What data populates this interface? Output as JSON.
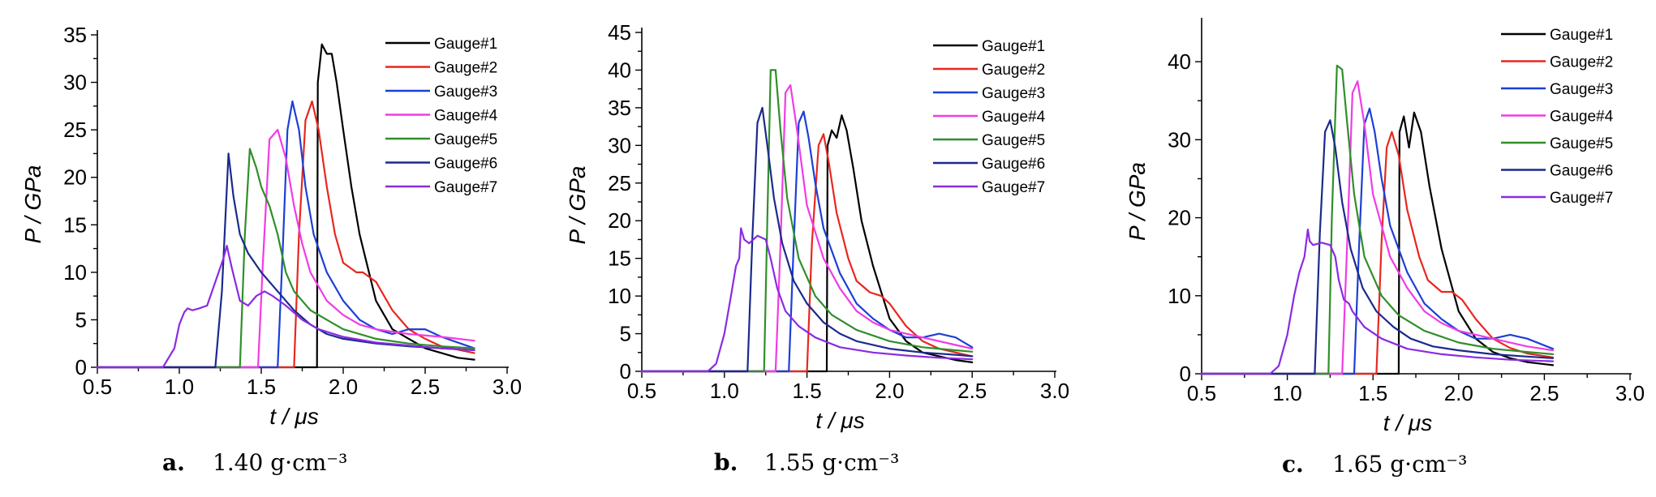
{
  "colors": {
    "Gauge#1": "#000000",
    "Gauge#2": "#e8271f",
    "Gauge#3": "#1c3fd6",
    "Gauge#4": "#f03ce6",
    "Gauge#5": "#2f8f2a",
    "Gauge#6": "#1b2a8c",
    "Gauge#7": "#8a2be2"
  },
  "chart_data": [
    {
      "type": "line",
      "panel": "a.",
      "caption": "1.40 g·cm⁻³",
      "xlabel": "t / μs",
      "ylabel": "P / GPa",
      "xlim": [
        0.5,
        3.0
      ],
      "ylim": [
        0,
        35
      ],
      "xticks": [
        "0.5",
        "1.0",
        "1.5",
        "2.0",
        "2.5",
        "3.0"
      ],
      "yticks": [
        "0",
        "5",
        "10",
        "15",
        "20",
        "25",
        "30",
        "35"
      ],
      "legend_position": "top-right",
      "series": [
        {
          "name": "Gauge#1",
          "x": [
            0.5,
            1.84,
            1.845,
            1.87,
            1.9,
            1.93,
            1.96,
            2.0,
            2.05,
            2.1,
            2.2,
            2.3,
            2.4,
            2.5,
            2.6,
            2.7,
            2.8
          ],
          "y": [
            0,
            0,
            30,
            34,
            33,
            33,
            30,
            25,
            19,
            14,
            7,
            4,
            3,
            2,
            1.5,
            1.0,
            0.8
          ]
        },
        {
          "name": "Gauge#2",
          "x": [
            0.5,
            1.7,
            1.73,
            1.77,
            1.81,
            1.85,
            1.9,
            1.95,
            2.0,
            2.08,
            2.12,
            2.2,
            2.3,
            2.4,
            2.5,
            2.6,
            2.8
          ],
          "y": [
            0,
            0,
            14,
            26,
            28,
            25,
            19,
            14,
            11,
            10,
            10,
            9,
            6,
            4,
            3,
            2.2,
            1.5
          ]
        },
        {
          "name": "Gauge#3",
          "x": [
            0.5,
            1.6,
            1.63,
            1.66,
            1.69,
            1.73,
            1.77,
            1.82,
            1.9,
            2.0,
            2.1,
            2.2,
            2.3,
            2.4,
            2.5,
            2.6,
            2.8
          ],
          "y": [
            0,
            0,
            12,
            25,
            28,
            25,
            19,
            14,
            10,
            7,
            5,
            4,
            3.5,
            4,
            4,
            3.2,
            2.0
          ]
        },
        {
          "name": "Gauge#4",
          "x": [
            0.5,
            1.48,
            1.51,
            1.55,
            1.6,
            1.65,
            1.7,
            1.75,
            1.8,
            1.9,
            2.0,
            2.1,
            2.2,
            2.4,
            2.6,
            2.8
          ],
          "y": [
            0,
            0,
            11,
            24,
            25,
            22,
            17,
            13,
            10,
            7,
            5.5,
            4.5,
            4,
            3.5,
            3.2,
            2.8
          ]
        },
        {
          "name": "Gauge#5",
          "x": [
            0.5,
            1.37,
            1.4,
            1.43,
            1.47,
            1.5,
            1.55,
            1.6,
            1.65,
            1.7,
            1.8,
            1.9,
            2.0,
            2.2,
            2.4,
            2.6,
            2.8
          ],
          "y": [
            0,
            0,
            14,
            23,
            21,
            19,
            17,
            14,
            10,
            8,
            6,
            5,
            4,
            3,
            2.5,
            2.2,
            2.0
          ]
        },
        {
          "name": "Gauge#6",
          "x": [
            0.5,
            1.22,
            1.26,
            1.3,
            1.33,
            1.37,
            1.42,
            1.5,
            1.6,
            1.7,
            1.8,
            1.9,
            2.0,
            2.2,
            2.4,
            2.6,
            2.8
          ],
          "y": [
            0,
            0,
            8,
            22.5,
            18,
            14,
            12,
            10,
            8,
            6,
            4.5,
            3.5,
            3,
            2.5,
            2.2,
            2.0,
            1.8
          ]
        },
        {
          "name": "Gauge#7",
          "x": [
            0.5,
            0.9,
            0.97,
            1.0,
            1.03,
            1.05,
            1.08,
            1.12,
            1.17,
            1.22,
            1.27,
            1.29,
            1.32,
            1.37,
            1.42,
            1.47,
            1.52,
            1.57,
            1.65,
            1.75,
            1.85,
            2.0,
            2.2,
            2.4,
            2.6,
            2.8
          ],
          "y": [
            0,
            0,
            2,
            4.5,
            5.8,
            6.2,
            6.0,
            6.2,
            6.5,
            9,
            11.5,
            12.8,
            10.5,
            7,
            6.5,
            7.5,
            8,
            7.5,
            6.5,
            5,
            4,
            3.2,
            2.6,
            2.3,
            2.0,
            1.8
          ]
        }
      ]
    },
    {
      "type": "line",
      "panel": "b.",
      "caption": "1.55 g·cm⁻³",
      "xlabel": "t / μs",
      "ylabel": "P / GPa",
      "xlim": [
        0.5,
        3.0
      ],
      "ylim": [
        0,
        45
      ],
      "xticks": [
        "0.5",
        "1.0",
        "1.5",
        "2.0",
        "2.5",
        "3.0"
      ],
      "yticks": [
        "0",
        "5",
        "10",
        "15",
        "20",
        "25",
        "30",
        "35",
        "40",
        "45"
      ],
      "legend_position": "top-right",
      "series": [
        {
          "name": "Gauge#1",
          "x": [
            0.5,
            1.62,
            1.625,
            1.65,
            1.68,
            1.71,
            1.74,
            1.78,
            1.83,
            1.9,
            2.0,
            2.1,
            2.2,
            2.3,
            2.4,
            2.5
          ],
          "y": [
            0,
            0,
            30,
            32,
            31,
            34,
            32,
            27,
            20,
            14,
            7,
            4,
            2.5,
            2,
            1.5,
            1.2
          ]
        },
        {
          "name": "Gauge#2",
          "x": [
            0.5,
            1.5,
            1.53,
            1.57,
            1.6,
            1.63,
            1.68,
            1.75,
            1.8,
            1.88,
            1.95,
            2.0,
            2.1,
            2.2,
            2.3,
            2.5
          ],
          "y": [
            0,
            0,
            17,
            30,
            31.5,
            28,
            21,
            15,
            12,
            10.5,
            10,
            9,
            6,
            4,
            3,
            2
          ]
        },
        {
          "name": "Gauge#3",
          "x": [
            0.5,
            1.39,
            1.42,
            1.45,
            1.48,
            1.51,
            1.55,
            1.6,
            1.7,
            1.8,
            1.9,
            2.0,
            2.1,
            2.2,
            2.3,
            2.4,
            2.5
          ],
          "y": [
            0,
            0,
            17,
            33,
            34.5,
            31,
            25,
            19,
            13,
            9,
            7,
            5.5,
            4.5,
            4.5,
            5,
            4.5,
            3.2
          ]
        },
        {
          "name": "Gauge#4",
          "x": [
            0.5,
            1.31,
            1.34,
            1.37,
            1.4,
            1.44,
            1.5,
            1.6,
            1.7,
            1.8,
            1.9,
            2.0,
            2.2,
            2.4,
            2.5
          ],
          "y": [
            0,
            0,
            17,
            37,
            38,
            32,
            22,
            15,
            11,
            8,
            6.5,
            5.5,
            4.5,
            3.5,
            3.0
          ]
        },
        {
          "name": "Gauge#5",
          "x": [
            0.5,
            1.24,
            1.26,
            1.28,
            1.31,
            1.34,
            1.38,
            1.45,
            1.55,
            1.65,
            1.8,
            2.0,
            2.2,
            2.4,
            2.5
          ],
          "y": [
            0,
            0,
            20,
            40,
            40,
            32,
            23,
            15,
            10,
            7.5,
            5.5,
            4,
            3.2,
            2.8,
            2.6
          ]
        },
        {
          "name": "Gauge#6",
          "x": [
            0.5,
            1.14,
            1.17,
            1.2,
            1.23,
            1.26,
            1.3,
            1.35,
            1.42,
            1.5,
            1.6,
            1.7,
            1.8,
            2.0,
            2.2,
            2.4,
            2.5
          ],
          "y": [
            0,
            0,
            18,
            33,
            35,
            30,
            23,
            17,
            12,
            9,
            6.5,
            5,
            4,
            3,
            2.5,
            2.2,
            2.0
          ]
        },
        {
          "name": "Gauge#7",
          "x": [
            0.5,
            0.9,
            0.95,
            1.0,
            1.04,
            1.07,
            1.09,
            1.1,
            1.12,
            1.15,
            1.2,
            1.25,
            1.28,
            1.32,
            1.37,
            1.45,
            1.55,
            1.7,
            1.9,
            2.1,
            2.3,
            2.5
          ],
          "y": [
            0,
            0,
            1,
            5,
            10,
            14,
            15,
            19,
            17.5,
            17,
            18,
            17.5,
            15,
            11,
            8,
            6,
            4.5,
            3.2,
            2.5,
            2.1,
            1.8,
            1.6
          ]
        }
      ]
    },
    {
      "type": "line",
      "panel": "c.",
      "caption": "1.65 g·cm⁻³",
      "xlabel": "t / μs",
      "ylabel": "P / GPa",
      "xlim": [
        0.5,
        3.0
      ],
      "ylim": [
        0,
        45
      ],
      "xticks": [
        "0.5",
        "1.0",
        "1.5",
        "2.0",
        "2.5",
        "3.0"
      ],
      "yticks": [
        "0",
        "10",
        "20",
        "30",
        "40"
      ],
      "legend_position": "top-right",
      "series": [
        {
          "name": "Gauge#1",
          "x": [
            0.5,
            1.65,
            1.655,
            1.68,
            1.71,
            1.74,
            1.78,
            1.83,
            1.9,
            2.0,
            2.1,
            2.2,
            2.3,
            2.4,
            2.55
          ],
          "y": [
            0,
            0,
            31,
            33,
            29,
            33.5,
            31,
            24,
            16,
            8,
            4.5,
            2.8,
            2,
            1.5,
            1.1
          ]
        },
        {
          "name": "Gauge#2",
          "x": [
            0.5,
            1.52,
            1.55,
            1.58,
            1.61,
            1.65,
            1.7,
            1.77,
            1.82,
            1.9,
            1.96,
            2.02,
            2.1,
            2.2,
            2.3,
            2.4,
            2.55
          ],
          "y": [
            0,
            0,
            17,
            29,
            31,
            28,
            21,
            15,
            12,
            10.5,
            10.5,
            9.5,
            7,
            4.5,
            3.3,
            2.6,
            2.1
          ]
        },
        {
          "name": "Gauge#3",
          "x": [
            0.5,
            1.39,
            1.42,
            1.45,
            1.48,
            1.51,
            1.55,
            1.6,
            1.7,
            1.8,
            1.9,
            2.0,
            2.1,
            2.2,
            2.3,
            2.4,
            2.55
          ],
          "y": [
            0,
            0,
            17,
            32,
            34,
            31,
            25,
            19,
            13,
            9,
            7,
            5.5,
            4.5,
            4.5,
            5,
            4.5,
            3.2
          ]
        },
        {
          "name": "Gauge#4",
          "x": [
            0.5,
            1.32,
            1.35,
            1.38,
            1.41,
            1.45,
            1.5,
            1.6,
            1.7,
            1.8,
            1.9,
            2.0,
            2.2,
            2.4,
            2.55
          ],
          "y": [
            0,
            0,
            17,
            36,
            37.5,
            32,
            23,
            15,
            11,
            8,
            6.5,
            5.5,
            4.5,
            3.5,
            3.0
          ]
        },
        {
          "name": "Gauge#5",
          "x": [
            0.5,
            1.24,
            1.26,
            1.29,
            1.32,
            1.35,
            1.39,
            1.45,
            1.55,
            1.65,
            1.8,
            2.0,
            2.2,
            2.4,
            2.55
          ],
          "y": [
            0,
            0,
            20,
            39.5,
            39,
            32,
            23,
            15,
            10,
            7.5,
            5.5,
            4,
            3.2,
            2.8,
            2.5
          ]
        },
        {
          "name": "Gauge#6",
          "x": [
            0.5,
            1.16,
            1.19,
            1.22,
            1.25,
            1.28,
            1.32,
            1.37,
            1.44,
            1.52,
            1.62,
            1.72,
            1.85,
            2.0,
            2.2,
            2.4,
            2.55
          ],
          "y": [
            0,
            0,
            18,
            31,
            32.5,
            29,
            22,
            16,
            11,
            8,
            6,
            4.5,
            3.5,
            3,
            2.5,
            2.2,
            2.0
          ]
        },
        {
          "name": "Gauge#7",
          "x": [
            0.5,
            0.9,
            0.95,
            1.0,
            1.04,
            1.07,
            1.1,
            1.12,
            1.13,
            1.15,
            1.2,
            1.25,
            1.28,
            1.3,
            1.33,
            1.36,
            1.38,
            1.45,
            1.55,
            1.7,
            1.9,
            2.1,
            2.3,
            2.55
          ],
          "y": [
            0,
            0,
            1,
            5,
            10,
            13,
            15,
            18.5,
            17,
            16.5,
            16.8,
            16.5,
            15,
            12,
            9.5,
            9,
            8,
            6,
            4.5,
            3.2,
            2.5,
            2.1,
            1.8,
            1.6
          ]
        }
      ]
    }
  ]
}
